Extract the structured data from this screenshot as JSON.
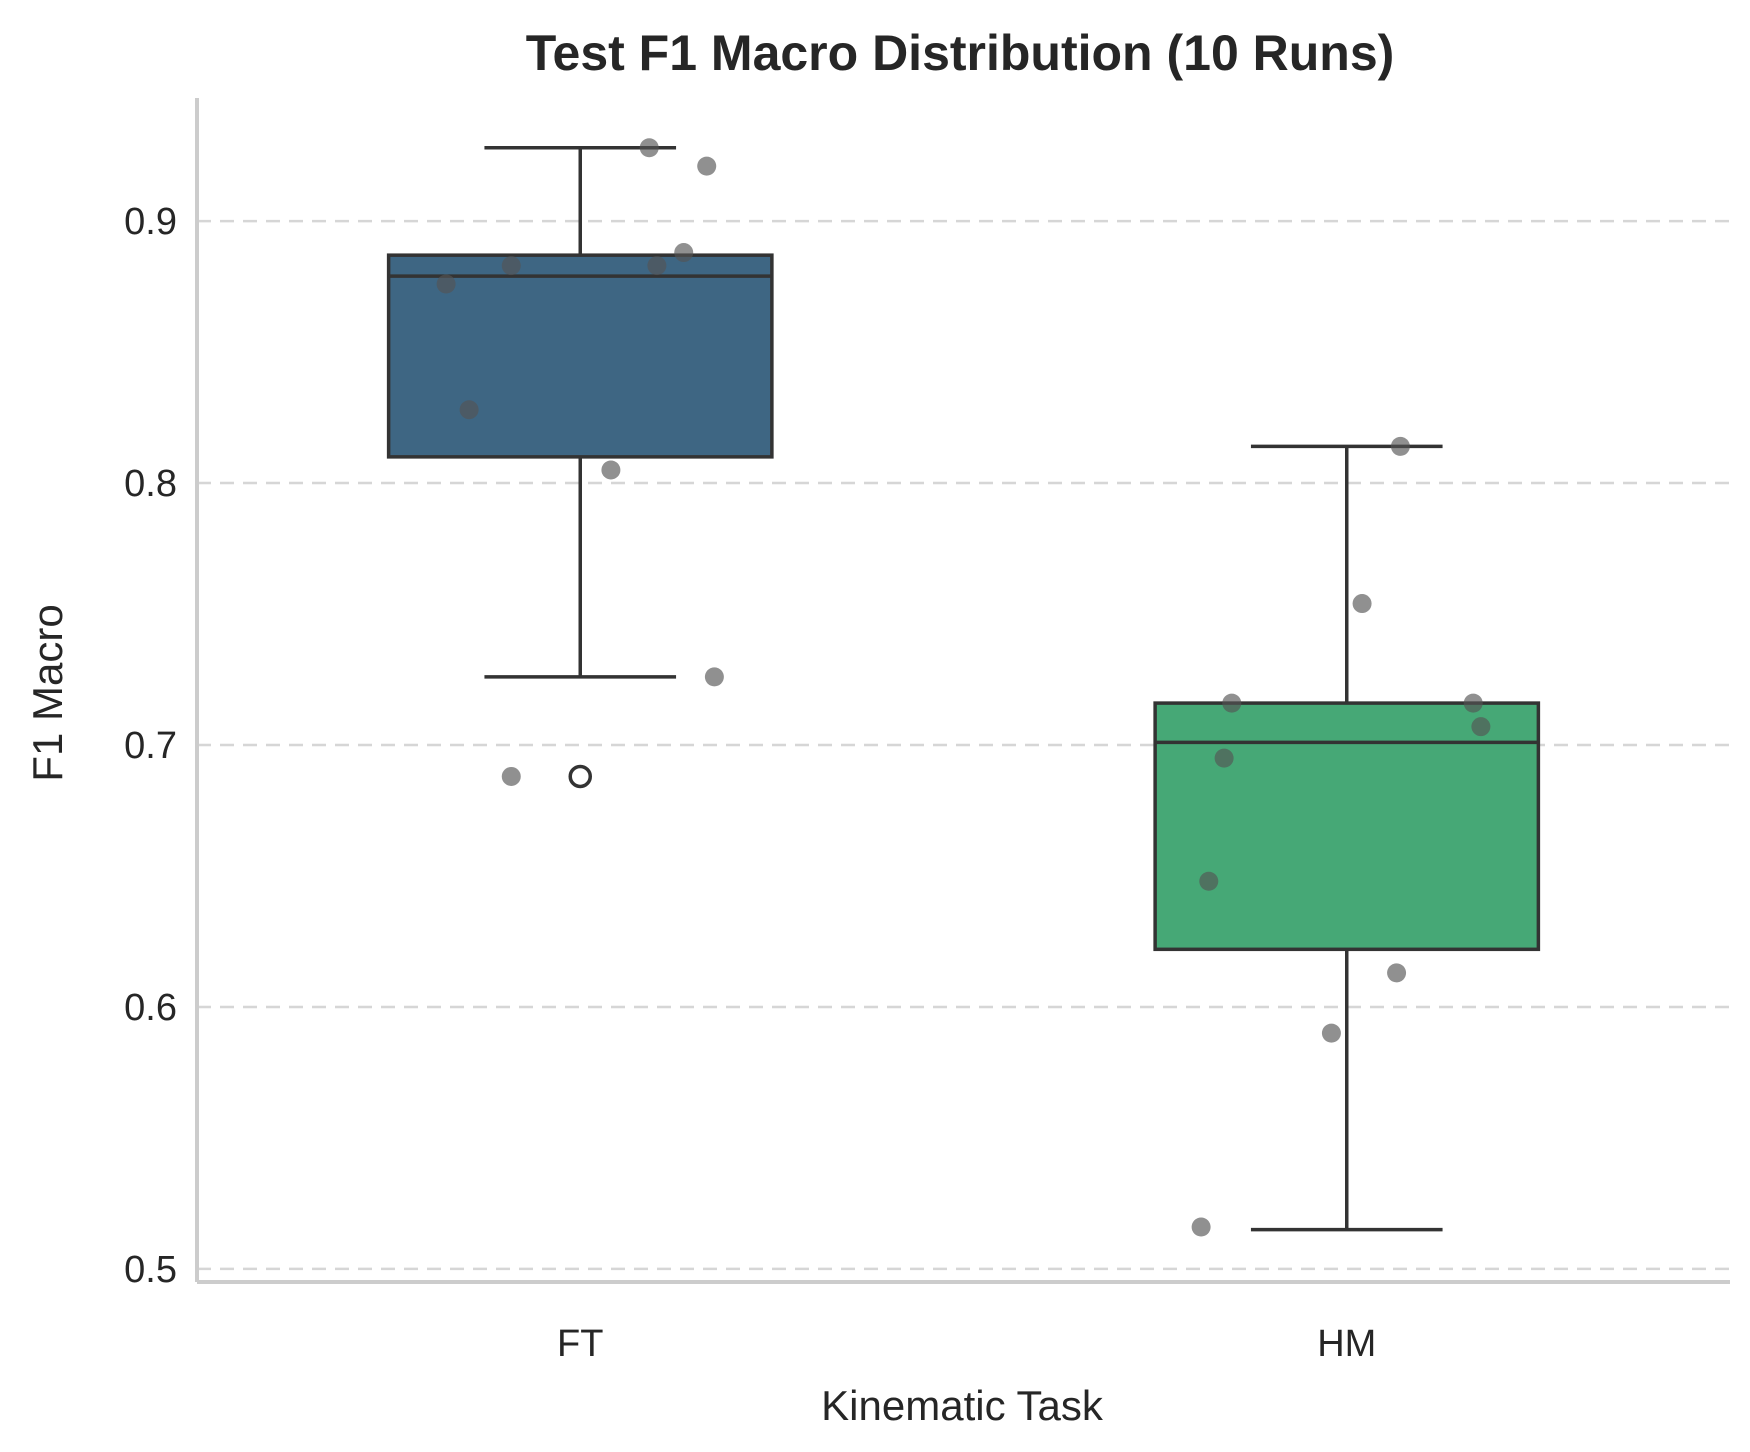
{
  "chart_data": {
    "type": "box",
    "title": "Test F1 Macro Distribution (10 Runs)",
    "xlabel": "Kinematic Task",
    "ylabel": "F1 Macro",
    "ylim": [
      0.495,
      0.947
    ],
    "yticks": [
      0.5,
      0.6,
      0.7,
      0.8,
      0.9
    ],
    "ytick_labels": [
      "0.5",
      "0.6",
      "0.7",
      "0.8",
      "0.9"
    ],
    "grid": "y-dashed",
    "categories": [
      "FT",
      "HM"
    ],
    "series": [
      {
        "category": "FT",
        "color": "#3e6683",
        "whisker_low": 0.726,
        "q1": 0.81,
        "median": 0.879,
        "q3": 0.887,
        "whisker_high": 0.928,
        "outliers": [
          0.688
        ],
        "points": [
          {
            "value": 0.928,
            "jitter": 0.09
          },
          {
            "value": 0.921,
            "jitter": 0.165
          },
          {
            "value": 0.888,
            "jitter": 0.135
          },
          {
            "value": 0.883,
            "jitter": -0.09
          },
          {
            "value": 0.883,
            "jitter": 0.1
          },
          {
            "value": 0.876,
            "jitter": -0.175
          },
          {
            "value": 0.828,
            "jitter": -0.145
          },
          {
            "value": 0.805,
            "jitter": 0.04
          },
          {
            "value": 0.726,
            "jitter": 0.175
          },
          {
            "value": 0.688,
            "jitter": -0.09
          }
        ]
      },
      {
        "category": "HM",
        "color": "#46a876",
        "whisker_low": 0.515,
        "q1": 0.622,
        "median": 0.701,
        "q3": 0.716,
        "whisker_high": 0.814,
        "outliers": [],
        "points": [
          {
            "value": 0.814,
            "jitter": 0.07
          },
          {
            "value": 0.754,
            "jitter": 0.02
          },
          {
            "value": 0.716,
            "jitter": -0.15
          },
          {
            "value": 0.716,
            "jitter": 0.165
          },
          {
            "value": 0.707,
            "jitter": 0.175
          },
          {
            "value": 0.695,
            "jitter": -0.16
          },
          {
            "value": 0.648,
            "jitter": -0.18
          },
          {
            "value": 0.613,
            "jitter": 0.065
          },
          {
            "value": 0.59,
            "jitter": -0.02
          },
          {
            "value": 0.516,
            "jitter": -0.19
          }
        ]
      }
    ]
  }
}
